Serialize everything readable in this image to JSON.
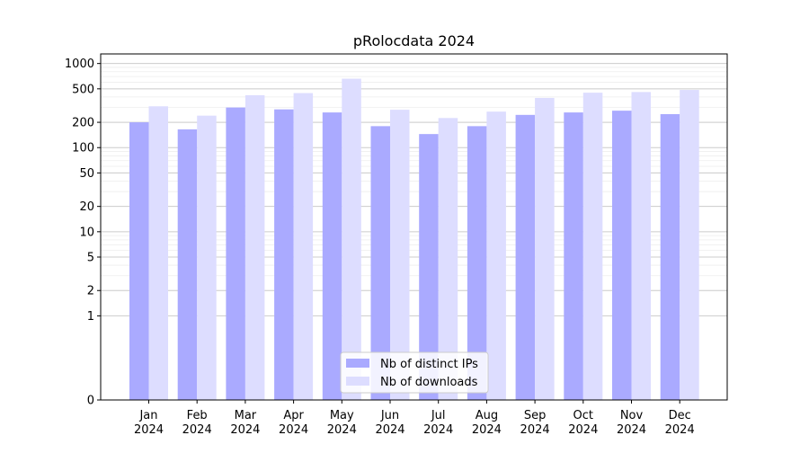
{
  "chart_data": {
    "type": "bar",
    "title": "pRolocdata 2024",
    "xlabel": "",
    "ylabel": "",
    "y_scale": "symlog",
    "ylim": [
      0,
      1300
    ],
    "y_ticks": [
      0,
      1,
      2,
      5,
      10,
      20,
      50,
      100,
      200,
      500,
      1000
    ],
    "categories": [
      {
        "month": "Jan",
        "year": "2024"
      },
      {
        "month": "Feb",
        "year": "2024"
      },
      {
        "month": "Mar",
        "year": "2024"
      },
      {
        "month": "Apr",
        "year": "2024"
      },
      {
        "month": "May",
        "year": "2024"
      },
      {
        "month": "Jun",
        "year": "2024"
      },
      {
        "month": "Jul",
        "year": "2024"
      },
      {
        "month": "Aug",
        "year": "2024"
      },
      {
        "month": "Sep",
        "year": "2024"
      },
      {
        "month": "Oct",
        "year": "2024"
      },
      {
        "month": "Nov",
        "year": "2024"
      },
      {
        "month": "Dec",
        "year": "2024"
      }
    ],
    "series": [
      {
        "name": "Nb of distinct IPs",
        "color": "#aaaaff",
        "values": [
          200,
          165,
          300,
          285,
          262,
          180,
          145,
          180,
          245,
          262,
          275,
          250
        ]
      },
      {
        "name": "Nb of downloads",
        "color": "#ddddff",
        "values": [
          310,
          240,
          420,
          445,
          660,
          282,
          225,
          268,
          390,
          450,
          458,
          485
        ]
      }
    ],
    "grid": true,
    "legend_position": "bottom-center"
  }
}
